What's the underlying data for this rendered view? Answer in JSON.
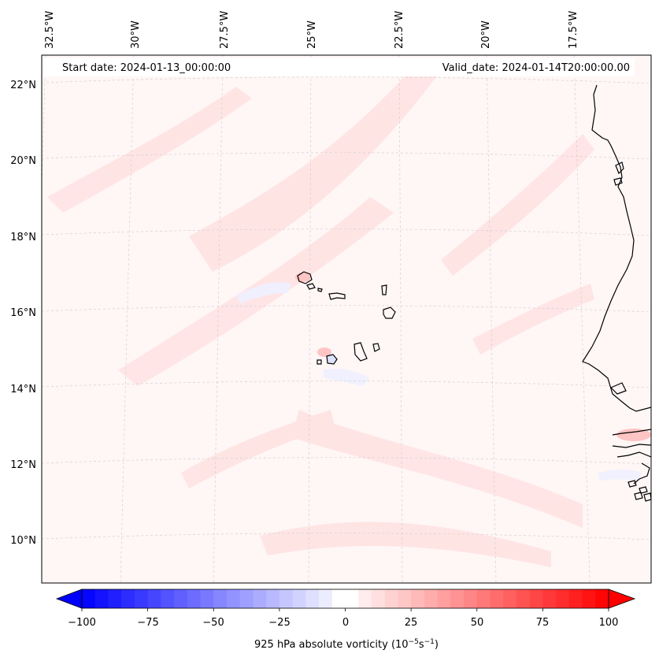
{
  "map": {
    "start_label": "Start date: 2024-01-13_00:00:00",
    "valid_label": "Valid_date: 2024-01-14T20:00:00.00",
    "lon_labels": [
      "32.5°W",
      "30°W",
      "27.5°W",
      "25°W",
      "22.5°W",
      "20°W",
      "17.5°W"
    ],
    "lat_labels": [
      "22°N",
      "20°N",
      "18°N",
      "16°N",
      "14°N",
      "12°N",
      "10°N"
    ],
    "colorbar": {
      "ticks": [
        "−100",
        "−75",
        "−50",
        "−25",
        "0",
        "25",
        "50",
        "75",
        "100"
      ],
      "label_main": "925 hPa absolute vorticity (10",
      "label_exp1": "−5",
      "label_mid": "s",
      "label_exp2": "−1",
      "label_end": ")",
      "min": -100,
      "max": 100,
      "step": 5
    },
    "colors": {
      "negative": "#0000ff",
      "positive": "#ff0000",
      "coast": "#000000",
      "grid": "#cccccc"
    }
  }
}
